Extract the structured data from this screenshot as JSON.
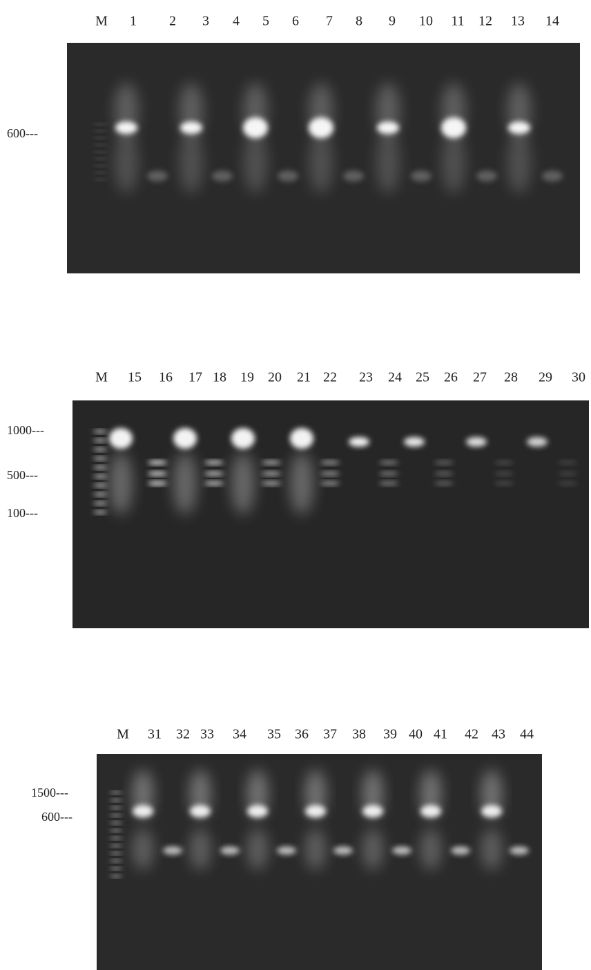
{
  "gels": [
    {
      "lanes": [
        "M",
        "1",
        "2",
        "3",
        "4",
        "5",
        "6",
        "7",
        "8",
        "9",
        "10",
        "11",
        "12",
        "13",
        "14"
      ],
      "markers": [
        "600---"
      ]
    },
    {
      "lanes": [
        "M",
        "15",
        "16",
        "17",
        "18",
        "19",
        "20",
        "21",
        "22",
        "23",
        "24",
        "25",
        "26",
        "27",
        "28",
        "29",
        "30"
      ],
      "markers": [
        "1000---",
        "500---",
        "100---"
      ]
    },
    {
      "lanes": [
        "M",
        "31",
        "32",
        "33",
        "34",
        "35",
        "36",
        "37",
        "38",
        "39",
        "40",
        "41",
        "42",
        "43",
        "44"
      ],
      "markers": [
        "1500---",
        "600---"
      ]
    }
  ]
}
